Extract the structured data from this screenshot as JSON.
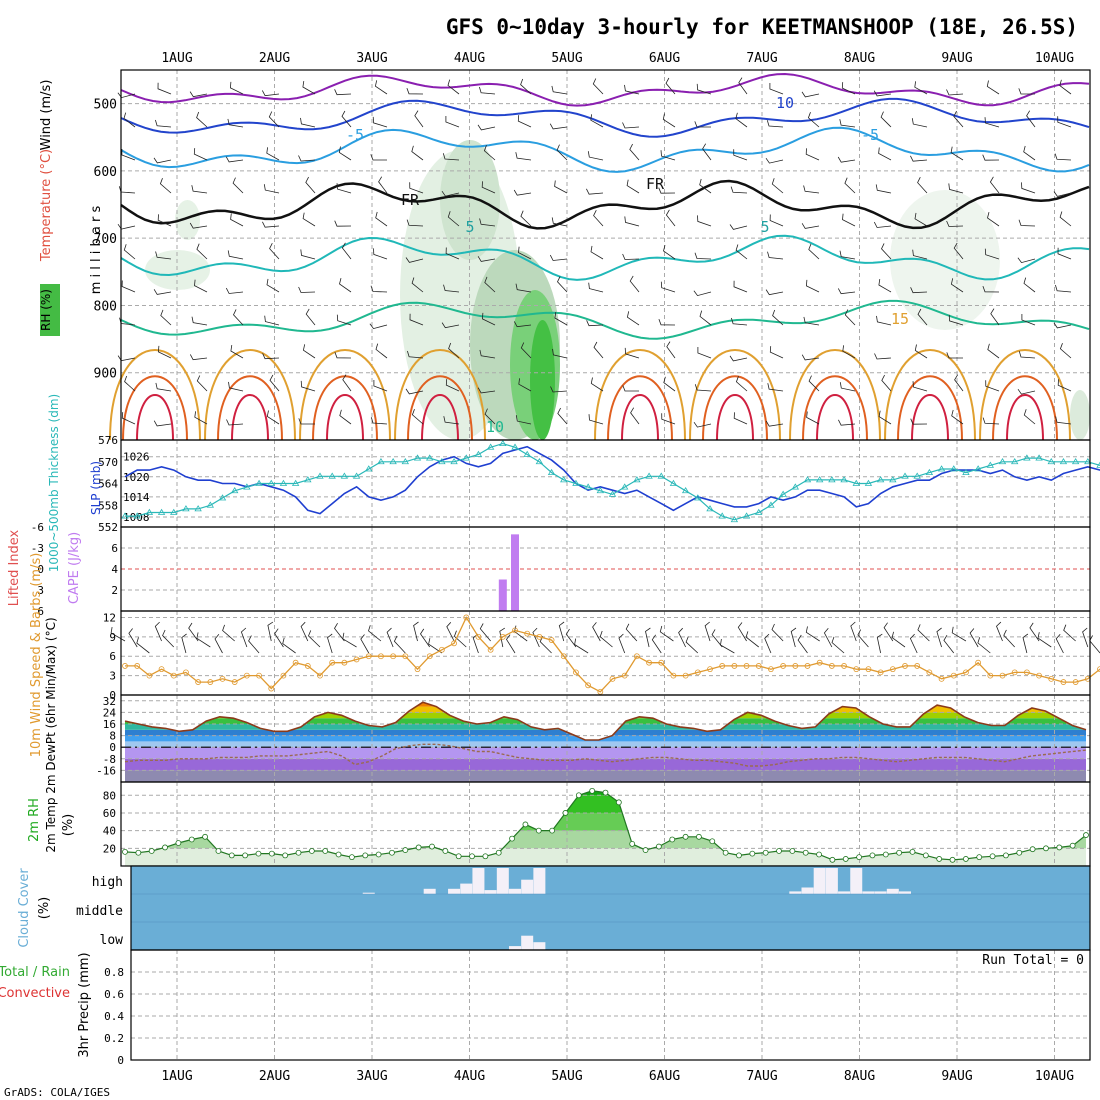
{
  "title": "GFS 0~10day 3-hourly for KEETMANSHOOP (18E, 26.5S)",
  "footer": "GrADS: COLA/IGES",
  "run_total_label": "Run Total = 0",
  "dates": [
    "1AUG",
    "2AUG",
    "3AUG",
    "4AUG",
    "5AUG",
    "6AUG",
    "7AUG",
    "8AUG",
    "9AUG",
    "10AUG"
  ],
  "colors": {
    "slp": "#1f3fd0",
    "thickness": "#2ab8b8",
    "cape": "#c07cf0",
    "lifted_index_line": "#e05050",
    "wind_speed": "#e09a30",
    "rh_fill": "#33bb33",
    "cloud_bg": "#6aaed6",
    "cloud_bar": "#f4f0f8",
    "temp_outline": "#8b3a1a",
    "dewpt": "#9a6a50"
  },
  "chart_data": [
    {
      "type": "contour",
      "panel": "upper-air",
      "ylabel": "m i l l i b a r s",
      "side_labels": [
        "Wind (m/s)",
        "Temperature (°C)",
        "RH (%)"
      ],
      "y_ticks": [
        500,
        600,
        700,
        800,
        900
      ],
      "ylim": [
        1000,
        450
      ],
      "contour_labels": [
        "10",
        "-5",
        "-5",
        "FR",
        "FR",
        "5",
        "5",
        "15",
        "10"
      ]
    },
    {
      "type": "line",
      "panel": "thickness-slp",
      "left_axis": {
        "label": "1000~500mb Thickness (dm)",
        "ticks": [
          552,
          558,
          564,
          570,
          576
        ],
        "range": [
          552,
          576
        ]
      },
      "right_axis": {
        "label": "SLP (mb)",
        "ticks": [
          1008,
          1014,
          1020,
          1026
        ],
        "range": [
          1005,
          1031
        ]
      },
      "series": [
        {
          "name": "SLP (mb)",
          "axis": "right",
          "values": [
            1020,
            1022,
            1022,
            1023,
            1022,
            1020,
            1019,
            1019,
            1018,
            1018,
            1017,
            1018,
            1017,
            1016,
            1014,
            1010,
            1009,
            1012,
            1015,
            1017,
            1014,
            1013,
            1014,
            1016,
            1020,
            1023,
            1025,
            1026,
            1024,
            1023,
            1024,
            1027,
            1028,
            1029,
            1027,
            1025,
            1022,
            1018,
            1016,
            1017,
            1016,
            1015,
            1016,
            1014,
            1012,
            1010,
            1012,
            1014,
            1013,
            1012,
            1011,
            1011,
            1012,
            1014,
            1013,
            1014,
            1016,
            1016,
            1015,
            1014,
            1011,
            1012,
            1015,
            1017,
            1018,
            1019,
            1019,
            1021,
            1022,
            1022,
            1022,
            1021,
            1022,
            1020,
            1019,
            1020,
            1019,
            1021,
            1022,
            1023,
            1022,
            1024
          ]
        },
        {
          "name": "1000~500mb Thickness (dm)",
          "axis": "left",
          "values": [
            555,
            555,
            556,
            556,
            556,
            557,
            557,
            558,
            560,
            562,
            563,
            564,
            564,
            564,
            564,
            565,
            566,
            566,
            566,
            566,
            568,
            570,
            570,
            570,
            571,
            571,
            570,
            570,
            571,
            572,
            574,
            575,
            574,
            572,
            570,
            567,
            565,
            564,
            563,
            562,
            561,
            563,
            565,
            566,
            566,
            564,
            562,
            560,
            557,
            555,
            554,
            555,
            556,
            558,
            561,
            563,
            565,
            565,
            565,
            565,
            564,
            564,
            565,
            565,
            566,
            566,
            567,
            568,
            568,
            567,
            568,
            569,
            570,
            570,
            571,
            571,
            570,
            570,
            570,
            570,
            569,
            570,
            571
          ]
        }
      ]
    },
    {
      "type": "bar",
      "panel": "cape-lifted-index",
      "left_axis": {
        "label": "Lifted Index",
        "ticks": [
          -6,
          -3,
          0,
          3,
          6
        ],
        "range": [
          -6,
          6
        ]
      },
      "right_axis": {
        "label": "CAPE (J/kg)",
        "ticks": [
          2,
          4,
          6
        ],
        "range": [
          0,
          8
        ]
      },
      "lifted_index_zero_line": 0,
      "series": [
        {
          "name": "CAPE (J/kg)",
          "bars": [
            {
              "step": 31,
              "value": 3
            },
            {
              "step": 32,
              "value": 7.3
            }
          ]
        }
      ]
    },
    {
      "type": "line",
      "panel": "wind-10m",
      "ylabel": "10m Wind Speed & Barbs (m/s)",
      "y_ticks": [
        0,
        3,
        6,
        9,
        12
      ],
      "ylim": [
        0,
        13
      ],
      "series": [
        {
          "name": "Speed",
          "values": [
            4.5,
            4.5,
            3,
            4,
            3,
            3.5,
            2,
            2,
            2.5,
            2,
            3,
            3,
            1,
            3,
            5,
            4.5,
            3,
            5,
            5,
            5.5,
            6,
            6,
            6,
            6,
            4,
            6,
            7,
            8,
            12,
            9,
            7,
            9,
            10,
            9.5,
            9,
            8.5,
            6,
            3.5,
            1.5,
            0.5,
            2.5,
            3,
            6,
            5,
            5,
            3,
            3,
            3.5,
            4,
            4.5,
            4.5,
            4.5,
            4.5,
            4,
            4.5,
            4.5,
            4.5,
            5,
            4.5,
            4.5,
            4,
            4,
            3.5,
            4,
            4.5,
            4.5,
            3.5,
            2.5,
            3,
            3.5,
            5,
            3,
            3,
            3.5,
            3.5,
            3,
            2.5,
            2,
            2,
            2.5,
            4,
            4.5
          ]
        }
      ]
    },
    {
      "type": "area",
      "panel": "temperature",
      "ylabel": "2m Temp 2m DewPt (6hr Min/Max) (°C)",
      "y_ticks": [
        -16,
        -8,
        0,
        8,
        16,
        24,
        32
      ],
      "ylim": [
        -24,
        36
      ],
      "series": [
        {
          "name": "2m Temp",
          "values": [
            18,
            16,
            14,
            13,
            11,
            12,
            18,
            21,
            20,
            17,
            13,
            11,
            11,
            14,
            21,
            24,
            22,
            18,
            15,
            14,
            17,
            25,
            31,
            28,
            22,
            18,
            16,
            17,
            21,
            19,
            14,
            12,
            13,
            9,
            5,
            5,
            8,
            18,
            21,
            20,
            16,
            14,
            13,
            11,
            12,
            19,
            24,
            22,
            18,
            15,
            13,
            14,
            23,
            28,
            27,
            21,
            16,
            14,
            14,
            23,
            29,
            27,
            21,
            17,
            15,
            15,
            22,
            27,
            25,
            20,
            15,
            12
          ]
        },
        {
          "name": "2m DewPt",
          "values": [
            -10,
            -9,
            -9,
            -9,
            -8,
            -8,
            -8,
            -7,
            -7,
            -7,
            -6,
            -6,
            -6,
            -5,
            -4,
            -3,
            -6,
            -12,
            -10,
            -6,
            -1,
            1,
            2,
            2,
            1,
            -1,
            -3,
            -3,
            -5,
            -7,
            -8,
            -9,
            -9,
            -9,
            -8,
            -9,
            -10,
            -9,
            -8,
            -7,
            -7,
            -8,
            -9,
            -9,
            -10,
            -11,
            -13,
            -13,
            -12,
            -10,
            -9,
            -8,
            -8,
            -7,
            -7,
            -8,
            -9,
            -10,
            -9,
            -8,
            -7,
            -7,
            -7,
            -8,
            -9,
            -10,
            -8,
            -6,
            -5,
            -4,
            -3,
            -2
          ]
        }
      ]
    },
    {
      "type": "area",
      "panel": "rh-2m",
      "ylabel": "2m RH (%)",
      "y_ticks": [
        20,
        40,
        60,
        80
      ],
      "ylim": [
        0,
        95
      ],
      "series": [
        {
          "name": "2m RH",
          "values": [
            16,
            15,
            17,
            21,
            26,
            30,
            33,
            17,
            12,
            12,
            14,
            14,
            12,
            15,
            17,
            17,
            13,
            10,
            12,
            13,
            15,
            18,
            21,
            22,
            17,
            11,
            11,
            11,
            15,
            31,
            47,
            40,
            40,
            60,
            80,
            85,
            83,
            72,
            25,
            18,
            22,
            30,
            33,
            33,
            28,
            15,
            12,
            14,
            15,
            17,
            17,
            15,
            13,
            7,
            8,
            10,
            12,
            13,
            15,
            16,
            12,
            8,
            7,
            8,
            10,
            11,
            12,
            15,
            19,
            20,
            21,
            23,
            35
          ]
        }
      ]
    },
    {
      "type": "bar",
      "panel": "cloud-cover",
      "ylabel": "Cloud Cover (%)",
      "levels": [
        "high",
        "middle",
        "low"
      ],
      "series": [
        {
          "name": "high",
          "bars": [
            {
              "step": 20,
              "value": 0.05
            },
            {
              "step": 25,
              "value": 0.2
            },
            {
              "step": 27,
              "value": 0.2
            },
            {
              "step": 28,
              "value": 0.4
            },
            {
              "step": 29,
              "value": 1
            },
            {
              "step": 30,
              "value": 0.15
            },
            {
              "step": 31,
              "value": 1
            },
            {
              "step": 32,
              "value": 0.2
            },
            {
              "step": 33,
              "value": 0.55
            },
            {
              "step": 34,
              "value": 1
            },
            {
              "step": 55,
              "value": 0.1
            },
            {
              "step": 56,
              "value": 0.25
            },
            {
              "step": 57,
              "value": 1
            },
            {
              "step": 58,
              "value": 1
            },
            {
              "step": 59,
              "value": 0.1
            },
            {
              "step": 60,
              "value": 1
            },
            {
              "step": 61,
              "value": 0.1
            },
            {
              "step": 62,
              "value": 0.1
            },
            {
              "step": 63,
              "value": 0.2
            },
            {
              "step": 64,
              "value": 0.1
            }
          ]
        },
        {
          "name": "low",
          "bars": [
            {
              "step": 32,
              "value": 0.15
            },
            {
              "step": 33,
              "value": 0.55
            },
            {
              "step": 34,
              "value": 0.3
            }
          ]
        }
      ]
    },
    {
      "type": "bar",
      "panel": "precip",
      "ylabel": "3hr Precip (mm)",
      "side_labels": [
        "Total / Rain",
        "Convective"
      ],
      "y_ticks": [
        0,
        0.2,
        0.4,
        0.6,
        0.8
      ],
      "ylim": [
        0,
        1
      ],
      "series": []
    }
  ]
}
